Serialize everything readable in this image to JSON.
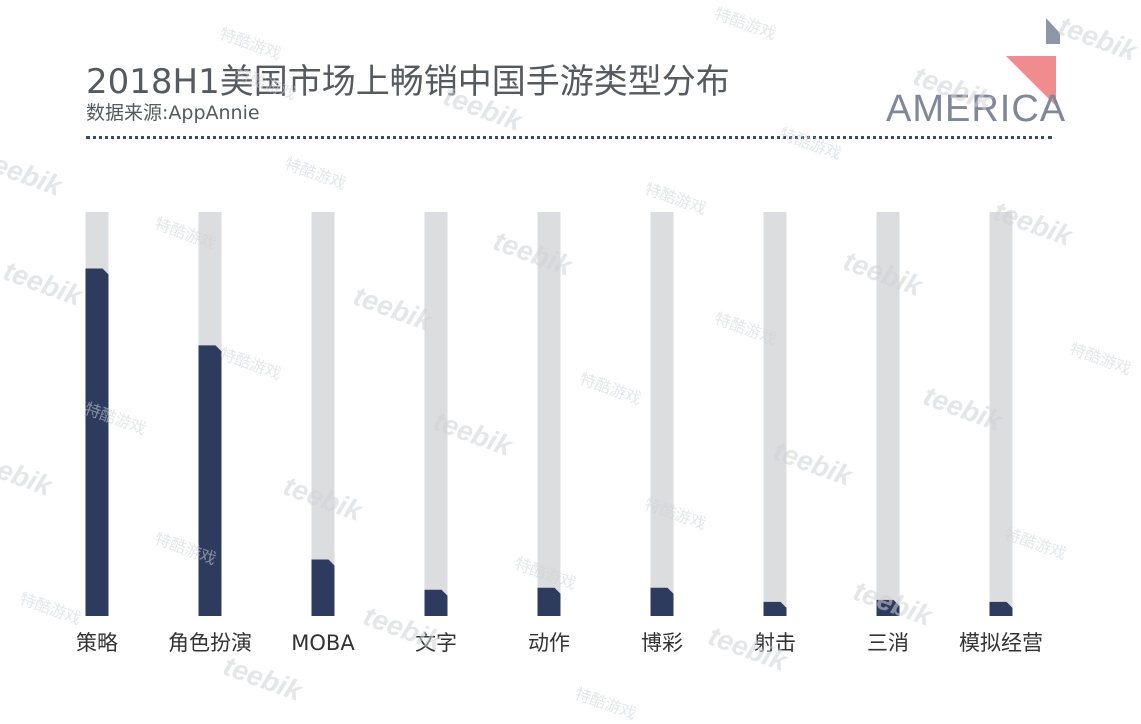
{
  "header": {
    "title": "2018H1美国市场上畅销中国手游类型分布",
    "subtitle": "数据来源:AppAnnie"
  },
  "logo": {
    "text": "AMERICA",
    "accent_color": "#f08b8e",
    "secondary_color": "#8e97a8"
  },
  "watermarks": {
    "latin": "teebik",
    "chinese": "特酷游戏"
  },
  "chart_data": {
    "type": "bar",
    "categories": [
      "策略",
      "角色扮演",
      "MOBA",
      "文字",
      "动作",
      "博彩",
      "射击",
      "三消",
      "模拟经营"
    ],
    "values": [
      86,
      67,
      14,
      6.5,
      7,
      7,
      3.5,
      4,
      3.5
    ],
    "ylim": [
      0,
      100
    ],
    "bar_color": "#2d3b5e",
    "track_color": "#dcdddf",
    "title": "",
    "xlabel": "",
    "ylabel": ""
  }
}
